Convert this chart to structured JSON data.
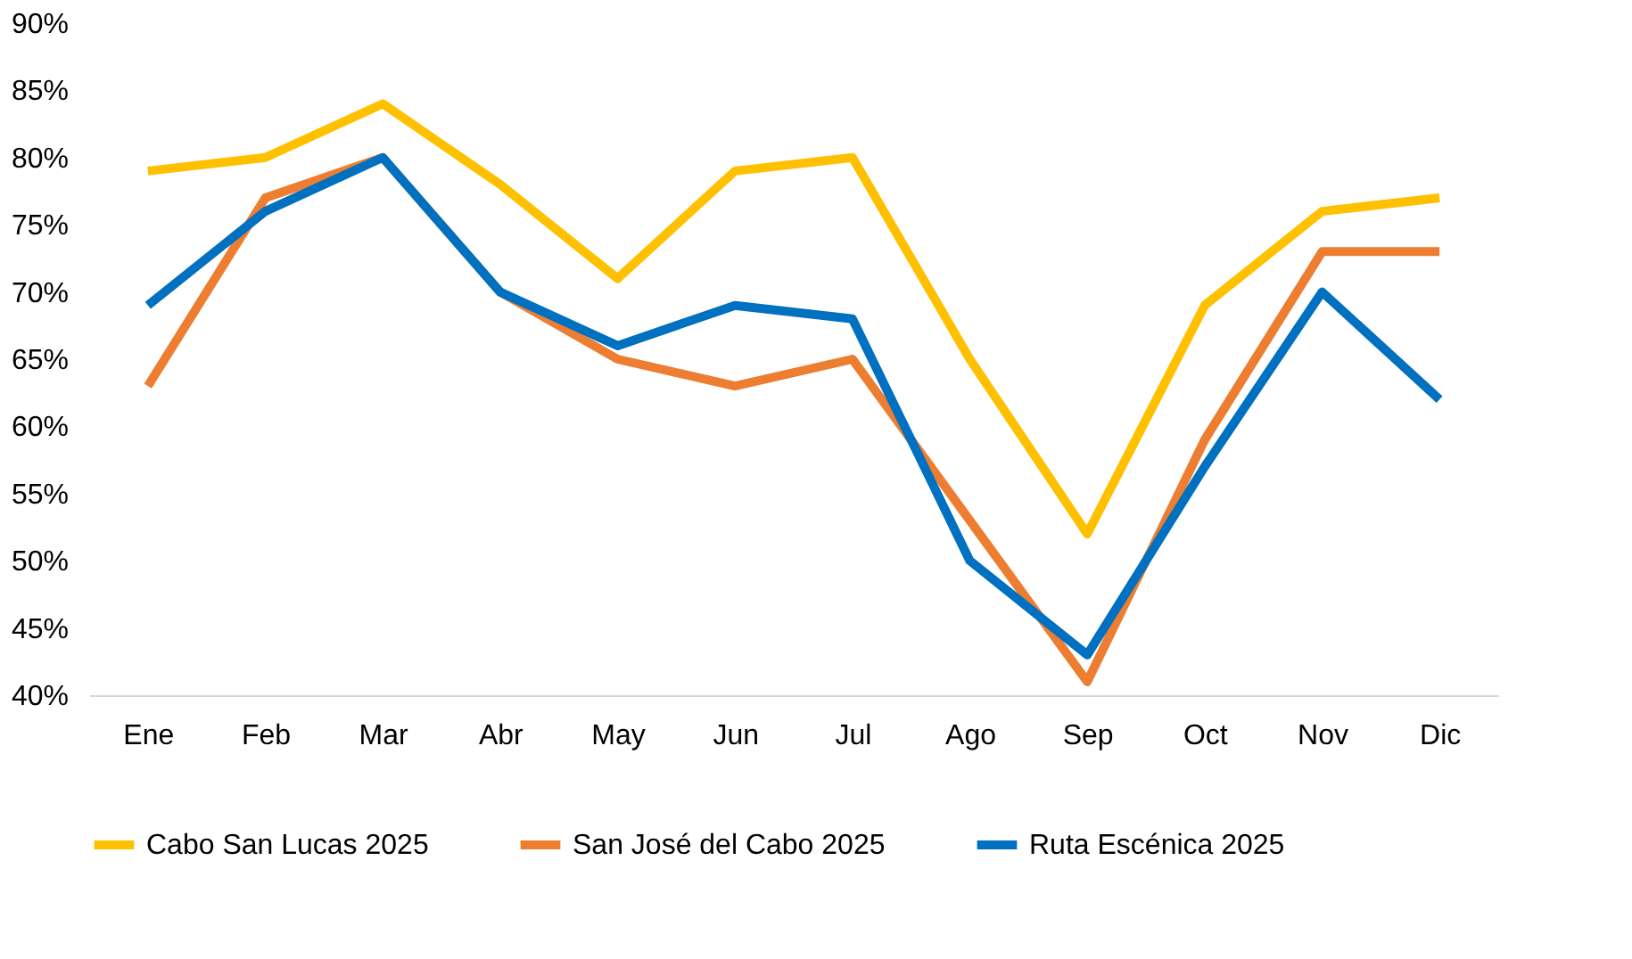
{
  "chart_data": {
    "type": "line",
    "categories": [
      "Ene",
      "Feb",
      "Mar",
      "Abr",
      "May",
      "Jun",
      "Jul",
      "Ago",
      "Sep",
      "Oct",
      "Nov",
      "Dic"
    ],
    "series": [
      {
        "name": "Cabo San Lucas 2025",
        "color": "#ffc000",
        "values": [
          79,
          80,
          84,
          78,
          71,
          79,
          80,
          65,
          52,
          69,
          76,
          77
        ]
      },
      {
        "name": "San José del Cabo 2025",
        "color": "#ed7d31",
        "values": [
          63,
          77,
          80,
          70,
          65,
          63,
          65,
          53,
          41,
          59,
          73,
          73
        ]
      },
      {
        "name": "Ruta Escénica 2025",
        "color": "#0070c0",
        "values": [
          69,
          76,
          80,
          70,
          66,
          69,
          68,
          50,
          43,
          57,
          70,
          62
        ]
      }
    ],
    "ylim": [
      40,
      90
    ],
    "yticks": [
      {
        "value": 40,
        "label": "40%"
      },
      {
        "value": 45,
        "label": "45%"
      },
      {
        "value": 50,
        "label": "50%"
      },
      {
        "value": 55,
        "label": "55%"
      },
      {
        "value": 60,
        "label": "60%"
      },
      {
        "value": 65,
        "label": "65%"
      },
      {
        "value": 70,
        "label": "70%"
      },
      {
        "value": 75,
        "label": "75%"
      },
      {
        "value": 80,
        "label": "80%"
      },
      {
        "value": 85,
        "label": "85%"
      },
      {
        "value": 90,
        "label": "90%"
      }
    ],
    "grid": false,
    "legend": "bottom",
    "marker": "none",
    "line_style": "solid"
  }
}
